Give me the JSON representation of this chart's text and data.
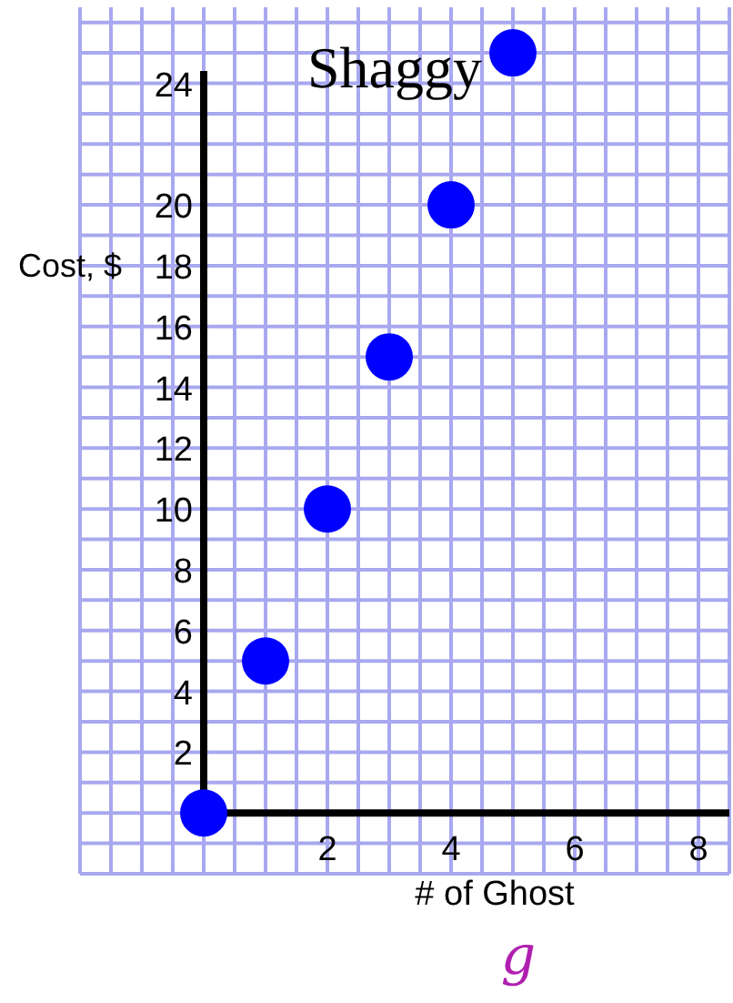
{
  "chart_data": {
    "type": "scatter",
    "title": "Shaggy",
    "xlabel": "# of Ghost",
    "ylabel": "Cost, $",
    "annotations": [
      "g"
    ],
    "x": [
      0,
      1,
      2,
      3,
      4,
      5
    ],
    "values": [
      0,
      5,
      10,
      15,
      20,
      25
    ],
    "color": "#0000ff",
    "marker": "circle",
    "xlim": [
      -2,
      8.5
    ],
    "ylim": [
      -2,
      26.5
    ],
    "xticks": [
      2,
      4,
      6,
      8
    ],
    "yticks": [
      2,
      4,
      6,
      8,
      10,
      12,
      14,
      16,
      18,
      20,
      24
    ],
    "grid": true
  }
}
